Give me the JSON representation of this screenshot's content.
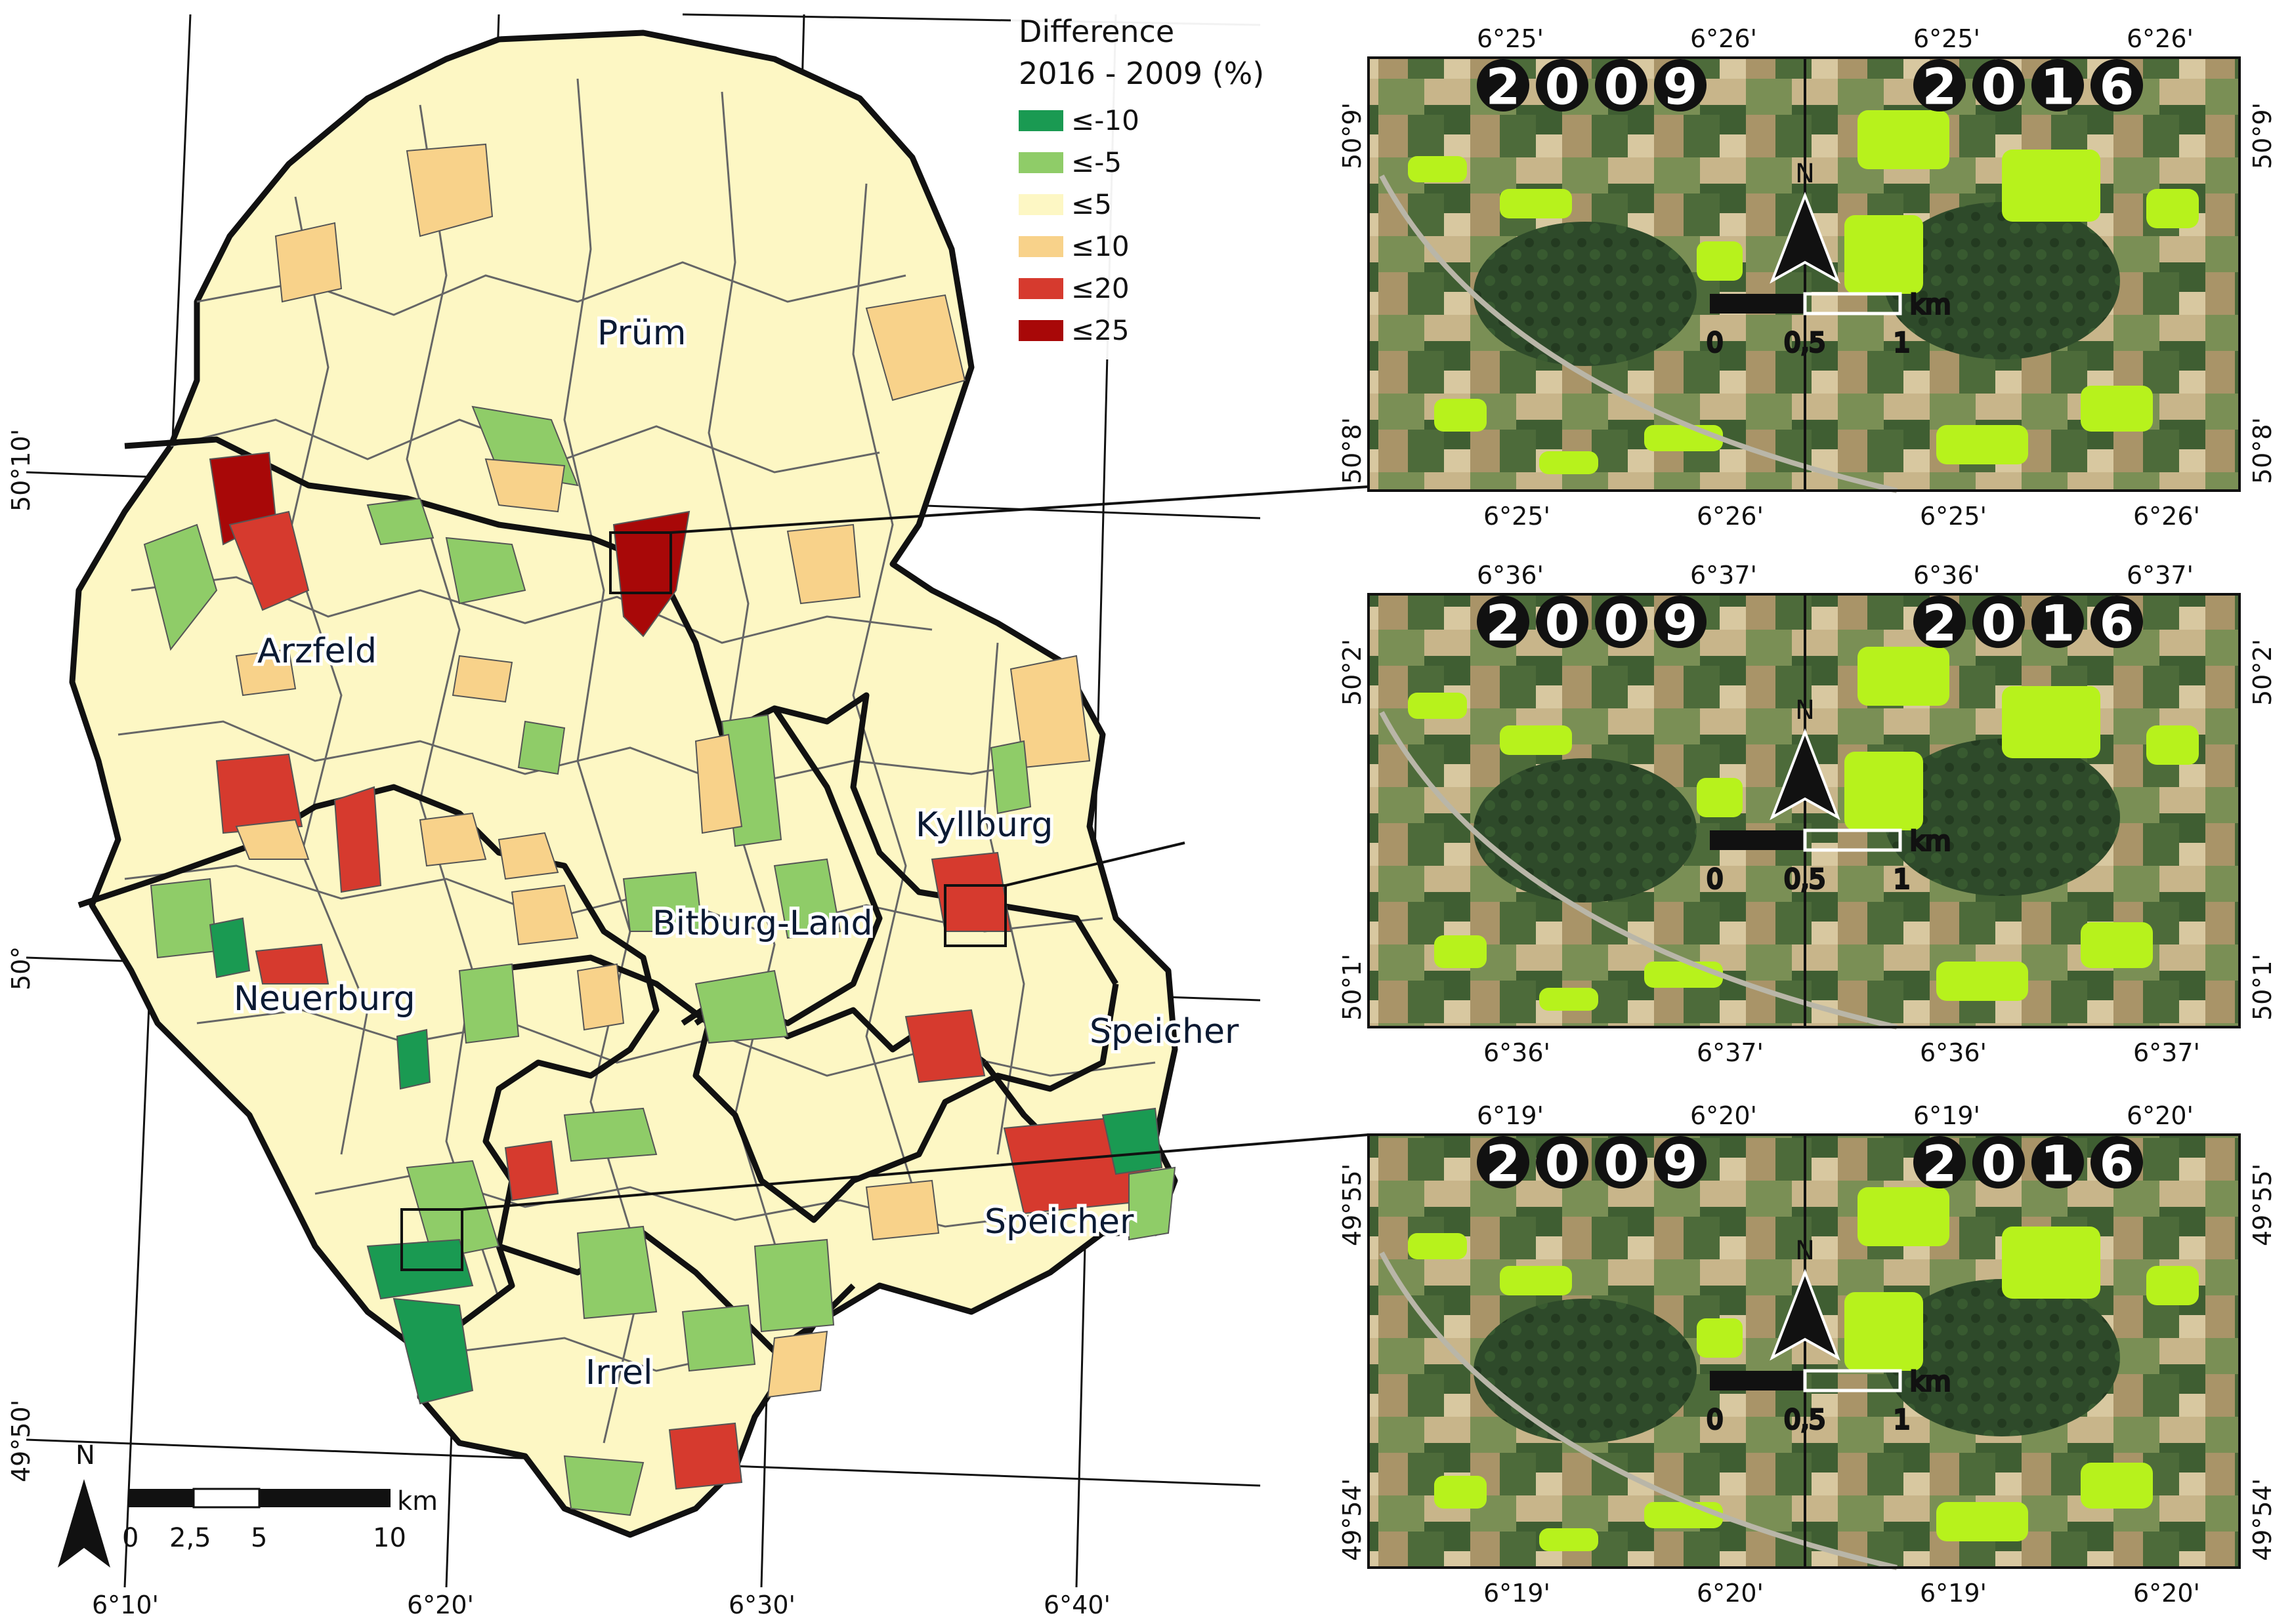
{
  "legend": {
    "title_line1": "Difference",
    "title_line2": "2016 - 2009 (%)",
    "items": [
      {
        "label": "≤-10",
        "color": "#1a9a52"
      },
      {
        "label": "≤-5",
        "color": "#8fcc68"
      },
      {
        "label": "≤5",
        "color": "#fdf7c4"
      },
      {
        "label": "≤10",
        "color": "#f8d28a"
      },
      {
        "label": "≤20",
        "color": "#d63a2e"
      },
      {
        "label": "≤25",
        "color": "#a80808"
      }
    ]
  },
  "districts": {
    "prum": "Prüm",
    "arzfeld": "Arzfeld",
    "kyllburg": "Kyllburg",
    "bitburg_land": "Bitburg-Land",
    "neuerburg": "Neuerburg",
    "speicher_upper": "Speicher",
    "speicher_lower": "Speicher",
    "irrel": "Irrel"
  },
  "main_map": {
    "lat_labels": [
      "50°10'",
      "50°",
      "49°50'"
    ],
    "lon_labels": [
      "6°10'",
      "6°20'",
      "6°30'",
      "6°40'"
    ],
    "scale_bar": {
      "ticks": [
        "0",
        "2,5",
        "5",
        "10"
      ],
      "unit": "km"
    },
    "north_label": "N"
  },
  "insets": [
    {
      "year_left": "2009",
      "year_right": "2016",
      "top_lons": [
        "6°25'",
        "6°26'",
        "6°25'",
        "6°26'"
      ],
      "bottom_lons": [
        "6°25'",
        "6°26'",
        "6°25'",
        "6°26'"
      ],
      "left_lats": [
        "50°9'",
        "50°8'"
      ],
      "right_lats": [
        "50°9'",
        "50°8'"
      ],
      "scale_ticks": [
        "0",
        "0,5",
        "1"
      ],
      "scale_unit": "km",
      "north_label": "N"
    },
    {
      "year_left": "2009",
      "year_right": "2016",
      "top_lons": [
        "6°36'",
        "6°37'",
        "6°36'",
        "6°37'"
      ],
      "bottom_lons": [
        "6°36'",
        "6°37'",
        "6°36'",
        "6°37'"
      ],
      "left_lats": [
        "50°2'",
        "50°1'"
      ],
      "right_lats": [
        "50°2'",
        "50°1'"
      ],
      "scale_ticks": [
        "0",
        "0,5",
        "1"
      ],
      "scale_unit": "km",
      "north_label": "N"
    },
    {
      "year_left": "2009",
      "year_right": "2016",
      "top_lons": [
        "6°19'",
        "6°20'",
        "6°19'",
        "6°20'"
      ],
      "bottom_lons": [
        "6°19'",
        "6°20'",
        "6°19'",
        "6°20'"
      ],
      "left_lats": [
        "49°55'",
        "49°54'"
      ],
      "right_lats": [
        "49°55'",
        "49°54'"
      ],
      "scale_ticks": [
        "0",
        "0,5",
        "1"
      ],
      "scale_unit": "km",
      "north_label": "N"
    }
  ]
}
